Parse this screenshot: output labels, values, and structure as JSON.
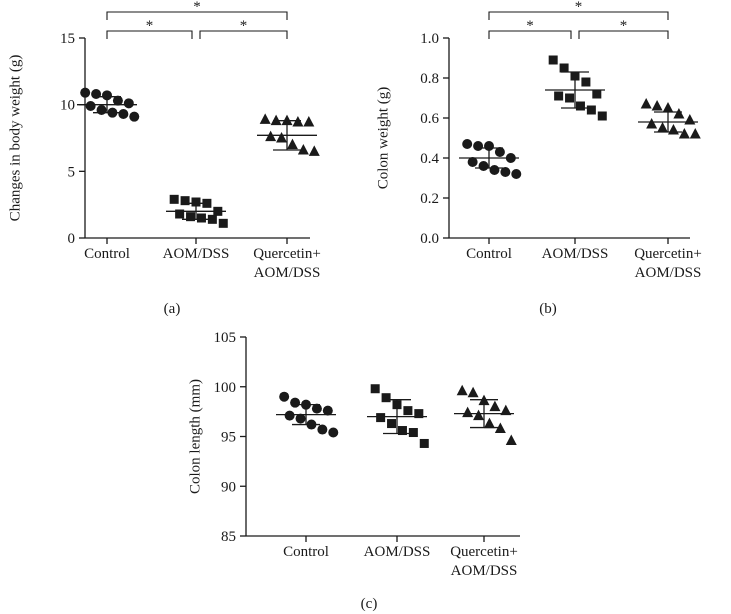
{
  "chart_data": [
    {
      "type": "scatter",
      "panel_label": "(a)",
      "ylabel": "Changes in body weight (g)",
      "ylim": [
        0,
        15
      ],
      "yticks": [
        "0",
        "5",
        "10",
        "15"
      ],
      "categories": [
        "Control",
        "AOM/DSS",
        "Quercetin+ AOM/DSS"
      ],
      "category_lines": [
        [
          "Control"
        ],
        [
          "AOM/DSS"
        ],
        [
          "Quercetin+",
          "AOM/DSS"
        ]
      ],
      "markers": [
        "circle",
        "square",
        "triangle"
      ],
      "series": [
        {
          "category": "Control",
          "mean": 10.0,
          "sd": 0.6,
          "values": [
            10.9,
            10.8,
            10.7,
            10.3,
            10.1,
            9.9,
            9.6,
            9.4,
            9.3,
            9.1
          ]
        },
        {
          "category": "AOM/DSS",
          "mean": 2.0,
          "sd": 0.6,
          "values": [
            2.9,
            2.8,
            2.7,
            2.6,
            2.0,
            1.8,
            1.6,
            1.5,
            1.4,
            1.1
          ]
        },
        {
          "category": "Quercetin+ AOM/DSS",
          "mean": 7.7,
          "sd": 1.1,
          "values": [
            8.9,
            8.8,
            8.8,
            8.7,
            8.7,
            7.6,
            7.5,
            7.0,
            6.6,
            6.5
          ]
        }
      ],
      "significance": [
        {
          "from": 0,
          "to": 2,
          "label": "*"
        },
        {
          "from": 0,
          "to": 1,
          "label": "*"
        },
        {
          "from": 1,
          "to": 2,
          "label": "*"
        }
      ]
    },
    {
      "type": "scatter",
      "panel_label": "(b)",
      "ylabel": "Colon weight (g)",
      "ylim": [
        0,
        1.0
      ],
      "yticks": [
        "0.0",
        "0.2",
        "0.4",
        "0.6",
        "0.8",
        "1.0"
      ],
      "categories": [
        "Control",
        "AOM/DSS",
        "Quercetin+ AOM/DSS"
      ],
      "category_lines": [
        [
          "Control"
        ],
        [
          "AOM/DSS"
        ],
        [
          "Quercetin+",
          "AOM/DSS"
        ]
      ],
      "markers": [
        "circle",
        "square",
        "triangle"
      ],
      "series": [
        {
          "category": "Control",
          "mean": 0.4,
          "sd": 0.05,
          "values": [
            0.47,
            0.46,
            0.46,
            0.43,
            0.4,
            0.38,
            0.36,
            0.34,
            0.33,
            0.32
          ]
        },
        {
          "category": "AOM/DSS",
          "mean": 0.74,
          "sd": 0.09,
          "values": [
            0.89,
            0.85,
            0.81,
            0.78,
            0.72,
            0.71,
            0.7,
            0.66,
            0.64,
            0.61
          ]
        },
        {
          "category": "Quercetin+ AOM/DSS",
          "mean": 0.58,
          "sd": 0.05,
          "values": [
            0.67,
            0.66,
            0.65,
            0.62,
            0.59,
            0.57,
            0.55,
            0.54,
            0.52,
            0.52
          ]
        }
      ],
      "significance": [
        {
          "from": 0,
          "to": 2,
          "label": "*"
        },
        {
          "from": 0,
          "to": 1,
          "label": "*"
        },
        {
          "from": 1,
          "to": 2,
          "label": "*"
        }
      ]
    },
    {
      "type": "scatter",
      "panel_label": "(c)",
      "ylabel": "Colon length (mm)",
      "ylim": [
        85,
        105
      ],
      "yticks": [
        "85",
        "90",
        "95",
        "100",
        "105"
      ],
      "categories": [
        "Control",
        "AOM/DSS",
        "Quercetin+ AOM/DSS"
      ],
      "category_lines": [
        [
          "Control"
        ],
        [
          "AOM/DSS"
        ],
        [
          "Quercetin+",
          "AOM/DSS"
        ]
      ],
      "markers": [
        "circle",
        "square",
        "triangle"
      ],
      "series": [
        {
          "category": "Control",
          "mean": 97.2,
          "sd": 1.0,
          "values": [
            99.0,
            98.4,
            98.2,
            97.8,
            97.6,
            97.1,
            96.8,
            96.2,
            95.7,
            95.4
          ]
        },
        {
          "category": "AOM/DSS",
          "mean": 97.0,
          "sd": 1.7,
          "values": [
            99.8,
            98.9,
            98.2,
            97.6,
            97.3,
            96.9,
            96.3,
            95.6,
            95.4,
            94.3
          ]
        },
        {
          "category": "Quercetin+ AOM/DSS",
          "mean": 97.3,
          "sd": 1.4,
          "values": [
            99.6,
            99.4,
            98.6,
            98.0,
            97.6,
            97.4,
            97.1,
            96.3,
            95.8,
            94.6
          ]
        }
      ],
      "significance": []
    }
  ]
}
